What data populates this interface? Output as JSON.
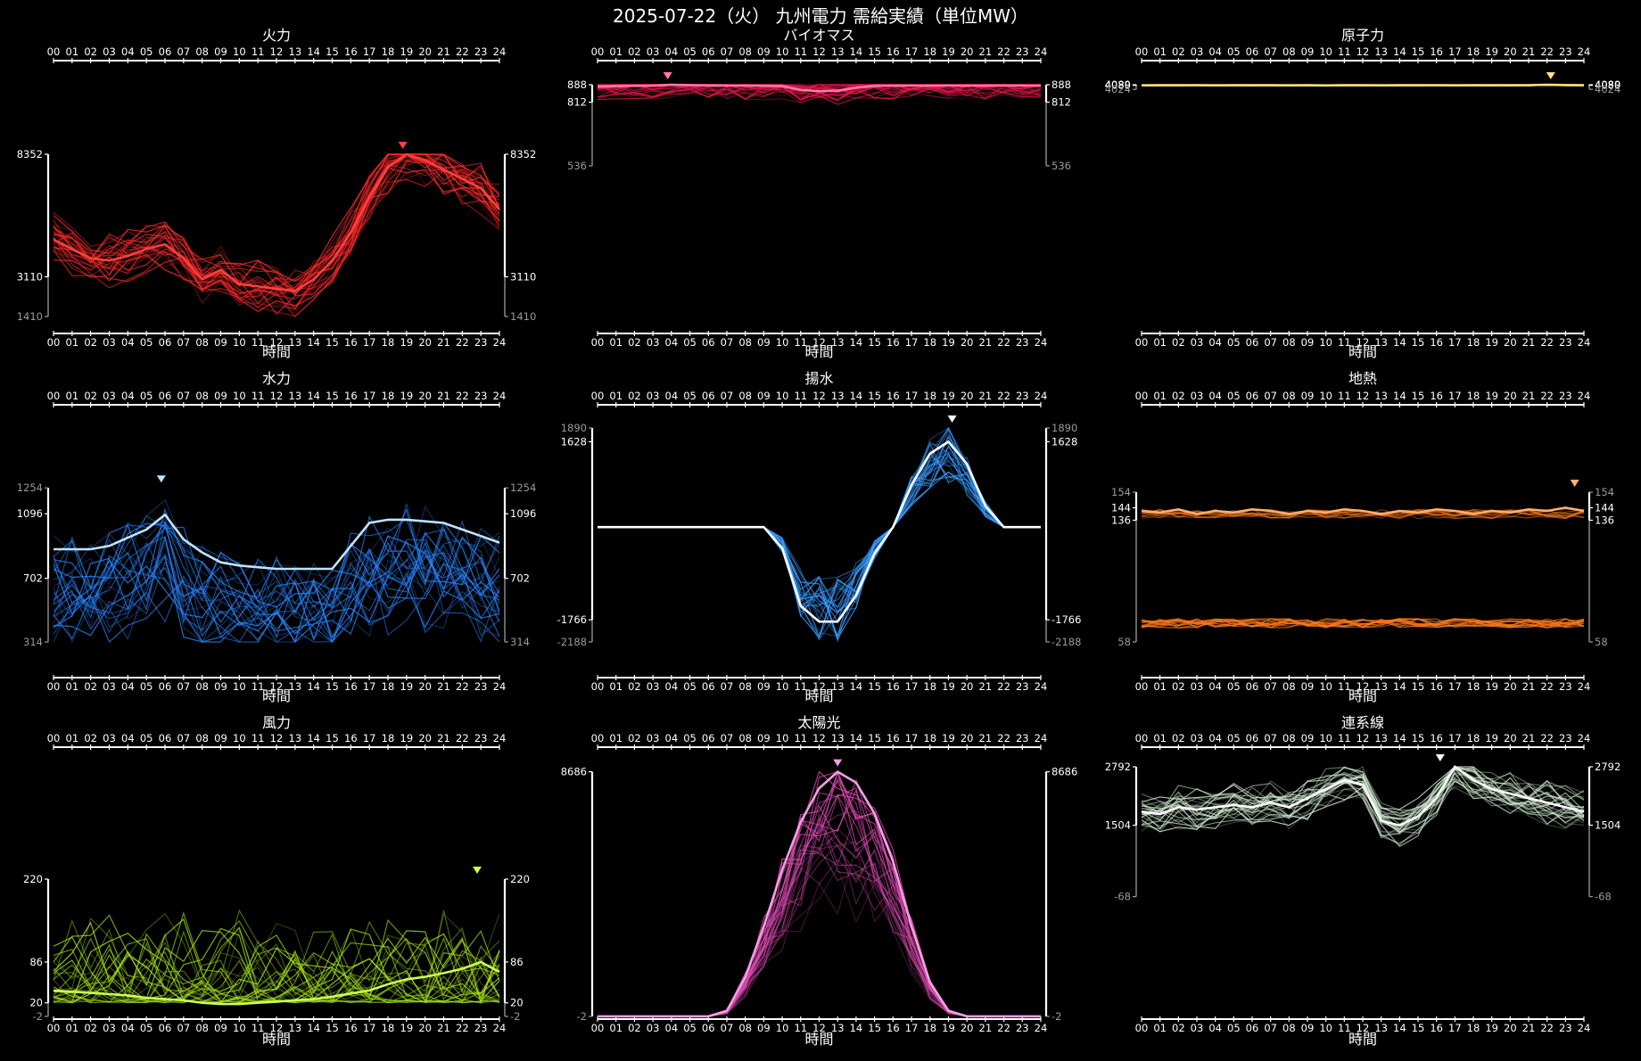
{
  "title": "2025-07-22（火） 九州電力 需給実績（単位MW）",
  "chart_data": [
    {
      "type": "line",
      "title": "火力",
      "xlabel": "時間",
      "ylabel": "",
      "x_ticks": [
        "00",
        "01",
        "02",
        "03",
        "04",
        "05",
        "06",
        "07",
        "08",
        "09",
        "10",
        "11",
        "12",
        "13",
        "14",
        "15",
        "16",
        "17",
        "18",
        "19",
        "20",
        "21",
        "22",
        "23",
        "24"
      ],
      "y_labels": {
        "max": "8352",
        "mid": "3110",
        "min": "1410"
      },
      "ylim": [
        1410,
        8352
      ],
      "color": "#ff2a2a",
      "highlight_color": "#ff4040",
      "peak_marker_hour": 18.8,
      "highlight_series": {
        "name": "2025-07-22",
        "values": [
          4700,
          4300,
          3900,
          3800,
          4000,
          4300,
          4500,
          3900,
          3000,
          3400,
          2800,
          2700,
          2600,
          2500,
          3000,
          3800,
          5000,
          6500,
          7800,
          8352,
          8100,
          7700,
          7300,
          6900,
          6000
        ]
      }
    },
    {
      "type": "line",
      "title": "バイオマス",
      "xlabel": "時間",
      "ylabel": "",
      "x_ticks": [
        "00",
        "01",
        "02",
        "03",
        "04",
        "05",
        "06",
        "07",
        "08",
        "09",
        "10",
        "11",
        "12",
        "13",
        "14",
        "15",
        "16",
        "17",
        "18",
        "19",
        "20",
        "21",
        "22",
        "23",
        "24"
      ],
      "y_labels": {
        "max": "888",
        "mid": "812",
        "min": "536"
      },
      "ylim": [
        536,
        888
      ],
      "color": "#e8174c",
      "highlight_color": "#ff7aa8",
      "peak_marker_hour": 3.8,
      "highlight_series": {
        "name": "2025-07-22",
        "values": [
          880,
          882,
          883,
          884,
          888,
          886,
          885,
          884,
          884,
          883,
          882,
          865,
          860,
          862,
          875,
          883,
          884,
          884,
          884,
          884,
          884,
          884,
          884,
          884,
          884
        ]
      }
    },
    {
      "type": "line",
      "title": "原子力",
      "xlabel": "時間",
      "ylabel": "",
      "x_ticks": [
        "00",
        "01",
        "02",
        "03",
        "04",
        "05",
        "06",
        "07",
        "08",
        "09",
        "10",
        "11",
        "12",
        "13",
        "14",
        "15",
        "16",
        "17",
        "18",
        "19",
        "20",
        "21",
        "22",
        "23",
        "24"
      ],
      "y_labels": {
        "max": "4089",
        "mid": "4080",
        "min": "4024"
      },
      "ylim": [
        4024,
        4089
      ],
      "color": "#ffd84a",
      "highlight_color": "#ffe27a",
      "peak_marker_hour": 22.2,
      "highlight_series": {
        "name": "2025-07-22",
        "values": [
          4080,
          4082,
          4081,
          4083,
          4080,
          4082,
          4081,
          4082,
          4080,
          4081,
          4079,
          4082,
          4081,
          4080,
          4082,
          4081,
          4083,
          4080,
          4082,
          4081,
          4082,
          4083,
          4089,
          4084,
          4082
        ]
      }
    },
    {
      "type": "line",
      "title": "水力",
      "xlabel": "時間",
      "ylabel": "",
      "x_ticks": [
        "00",
        "01",
        "02",
        "03",
        "04",
        "05",
        "06",
        "07",
        "08",
        "09",
        "10",
        "11",
        "12",
        "13",
        "14",
        "15",
        "16",
        "17",
        "18",
        "19",
        "20",
        "21",
        "22",
        "23",
        "24"
      ],
      "y_labels": {
        "max": "1254",
        "mid": "1096",
        "mid2": "702",
        "min": "314"
      },
      "ylim": [
        314,
        1254
      ],
      "color": "#2a86ff",
      "highlight_color": "#bfe3ff",
      "peak_marker_hour": 5.8,
      "highlight_series": {
        "name": "2025-07-22",
        "values": [
          880,
          880,
          880,
          900,
          950,
          1000,
          1090,
          940,
          860,
          800,
          780,
          770,
          760,
          760,
          760,
          760,
          900,
          1040,
          1060,
          1060,
          1050,
          1040,
          1000,
          960,
          920
        ]
      }
    },
    {
      "type": "line",
      "title": "揚水",
      "xlabel": "時間",
      "ylabel": "",
      "x_ticks": [
        "00",
        "01",
        "02",
        "03",
        "04",
        "05",
        "06",
        "07",
        "08",
        "09",
        "10",
        "11",
        "12",
        "13",
        "14",
        "15",
        "16",
        "17",
        "18",
        "19",
        "20",
        "21",
        "22",
        "23",
        "24"
      ],
      "y_labels": {
        "max": "1890",
        "mid": "1628",
        "mid2": "-1766",
        "min": "-2188"
      },
      "ylim": [
        -2188,
        1890
      ],
      "color": "#3a9cff",
      "highlight_color": "#ffffff",
      "peak_marker_hour": 19.2,
      "highlight_series": {
        "name": "2025-07-22",
        "values": [
          0,
          0,
          0,
          0,
          0,
          0,
          0,
          0,
          0,
          0,
          -400,
          -1500,
          -1800,
          -1800,
          -1300,
          -500,
          0,
          800,
          1400,
          1628,
          1200,
          400,
          0,
          0,
          0
        ]
      }
    },
    {
      "type": "line",
      "title": "地熱",
      "xlabel": "時間",
      "ylabel": "",
      "x_ticks": [
        "00",
        "01",
        "02",
        "03",
        "04",
        "05",
        "06",
        "07",
        "08",
        "09",
        "10",
        "11",
        "12",
        "13",
        "14",
        "15",
        "16",
        "17",
        "18",
        "19",
        "20",
        "21",
        "22",
        "23",
        "24"
      ],
      "y_labels": {
        "max": "154",
        "mid": "144",
        "mid2": "136",
        "min": "58"
      },
      "ylim": [
        58,
        154
      ],
      "color": "#ff7a1a",
      "highlight_color": "#ffb070",
      "peak_marker_hour": 23.5,
      "highlight_series": {
        "name": "2025-07-22",
        "values": [
          142,
          141,
          143,
          140,
          142,
          141,
          143,
          142,
          140,
          142,
          141,
          143,
          142,
          140,
          142,
          141,
          143,
          142,
          140,
          142,
          141,
          143,
          142,
          144,
          142
        ]
      }
    },
    {
      "type": "line",
      "title": "風力",
      "xlabel": "時間",
      "ylabel": "",
      "x_ticks": [
        "00",
        "01",
        "02",
        "03",
        "04",
        "05",
        "06",
        "07",
        "08",
        "09",
        "10",
        "11",
        "12",
        "13",
        "14",
        "15",
        "16",
        "17",
        "18",
        "19",
        "20",
        "21",
        "22",
        "23",
        "24"
      ],
      "y_labels": {
        "max": "220",
        "mid": "86",
        "mid2": "20",
        "min": "-2"
      },
      "ylim": [
        -2,
        220
      ],
      "color": "#a8e61a",
      "highlight_color": "#ccff55",
      "peak_marker_hour": 22.8,
      "highlight_series": {
        "name": "2025-07-22",
        "values": [
          40,
          38,
          36,
          34,
          32,
          28,
          26,
          24,
          20,
          18,
          18,
          20,
          22,
          24,
          26,
          30,
          35,
          40,
          50,
          58,
          62,
          68,
          75,
          86,
          70
        ]
      }
    },
    {
      "type": "line",
      "title": "太陽光",
      "xlabel": "時間",
      "ylabel": "",
      "x_ticks": [
        "00",
        "01",
        "02",
        "03",
        "04",
        "05",
        "06",
        "07",
        "08",
        "09",
        "10",
        "11",
        "12",
        "13",
        "14",
        "15",
        "16",
        "17",
        "18",
        "19",
        "20",
        "21",
        "22",
        "23",
        "24"
      ],
      "y_labels": {
        "max": "8686",
        "min": "-2"
      },
      "ylim": [
        -2,
        8686
      ],
      "color": "#d94ab0",
      "highlight_color": "#f0a0e0",
      "peak_marker_hour": 13.0,
      "highlight_series": {
        "name": "2025-07-22",
        "values": [
          0,
          0,
          0,
          0,
          0,
          0,
          0,
          200,
          1400,
          3200,
          5200,
          6900,
          8100,
          8686,
          8300,
          7200,
          5500,
          3200,
          1200,
          200,
          0,
          0,
          0,
          0,
          0
        ]
      }
    },
    {
      "type": "line",
      "title": "連系線",
      "xlabel": "時間",
      "ylabel": "",
      "x_ticks": [
        "00",
        "01",
        "02",
        "03",
        "04",
        "05",
        "06",
        "07",
        "08",
        "09",
        "10",
        "11",
        "12",
        "13",
        "14",
        "15",
        "16",
        "17",
        "18",
        "19",
        "20",
        "21",
        "22",
        "23",
        "24"
      ],
      "y_labels": {
        "max": "2792",
        "mid": "1504",
        "min": "-68"
      },
      "ylim": [
        -68,
        2792
      ],
      "color": "#cfe8d0",
      "highlight_color": "#ffffff",
      "peak_marker_hour": 16.2,
      "highlight_series": {
        "name": "2025-07-22",
        "values": [
          1800,
          1750,
          1900,
          1850,
          1900,
          1950,
          1900,
          2000,
          1900,
          2100,
          2300,
          2500,
          2400,
          1600,
          1500,
          1700,
          2100,
          2792,
          2500,
          2300,
          2200,
          2100,
          2000,
          1900,
          1800
        ]
      }
    }
  ]
}
